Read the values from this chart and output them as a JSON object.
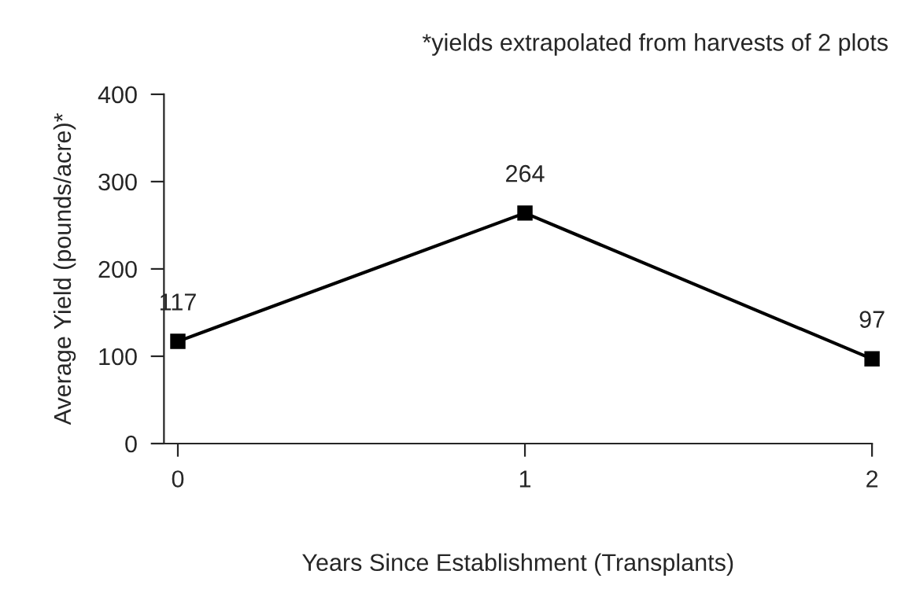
{
  "chart_data": {
    "type": "line",
    "xlabel": "Years Since Establishment (Transplants)",
    "ylabel": "Average Yield (pounds/acre)*",
    "annotations": [
      "*yields extrapolated from harvests of 2 plots"
    ],
    "x": [
      0,
      1,
      2
    ],
    "series": [
      {
        "color": "#000000",
        "values": [
          117,
          264,
          97
        ]
      }
    ],
    "xlim": [
      -0.04,
      2
    ],
    "xticks": [
      0,
      1,
      2
    ],
    "ylim": [
      0,
      400
    ],
    "yticks": [
      0,
      100,
      200,
      300,
      400
    ],
    "data_labels": true,
    "marker": "square",
    "line_style": "solid",
    "grid": false,
    "legend": false
  }
}
